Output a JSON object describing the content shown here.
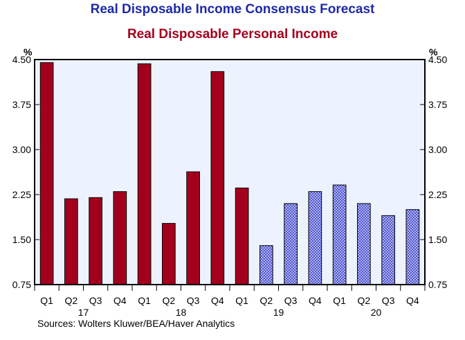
{
  "chart_data": {
    "type": "bar",
    "title": "Real Disposable Income Consensus Forecast",
    "subtitle": "Real Disposable Personal Income",
    "unit_left": "%",
    "unit_right": "%",
    "ylim": [
      0.75,
      4.5
    ],
    "yticks": [
      "0.75",
      "1.50",
      "2.25",
      "3.00",
      "3.75",
      "4.50"
    ],
    "categories": [
      "Q1",
      "Q2",
      "Q3",
      "Q4",
      "Q1",
      "Q2",
      "Q3",
      "Q4",
      "Q1",
      "Q2",
      "Q3",
      "Q4",
      "Q1",
      "Q2",
      "Q3",
      "Q4"
    ],
    "year_labels": [
      {
        "label": "17",
        "category_index": 1.5
      },
      {
        "label": "18",
        "category_index": 5.5
      },
      {
        "label": "19",
        "category_index": 9.5
      },
      {
        "label": "20",
        "category_index": 13.5
      }
    ],
    "series": [
      {
        "values": [
          4.45,
          2.18,
          2.2,
          2.3,
          4.43,
          1.77,
          2.63,
          4.3,
          2.36,
          1.4,
          2.1,
          2.3,
          2.41,
          2.1,
          1.9,
          2.0
        ],
        "kind": [
          "actual",
          "actual",
          "actual",
          "actual",
          "actual",
          "actual",
          "actual",
          "actual",
          "actual",
          "forecast",
          "forecast",
          "forecast",
          "forecast",
          "forecast",
          "forecast",
          "forecast"
        ]
      }
    ],
    "colors": {
      "actual": "#a3001e",
      "forecast_fill": "#c8ccf6",
      "forecast_pattern": "#3a3fc8",
      "plot_bg": "#edf3fe",
      "title": "#1f2aa8",
      "subtitle": "#a3001e"
    },
    "grid": false,
    "legend": "none",
    "source": "Sources:   Wolters Kluwer/BEA/Haver Analytics"
  }
}
